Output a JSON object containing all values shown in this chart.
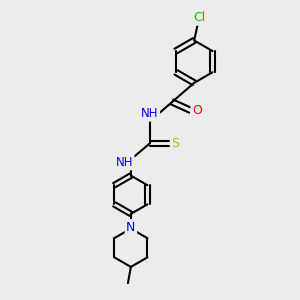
{
  "bg_color": "#ececec",
  "bond_color": "#000000",
  "bond_width": 1.5,
  "atom_colors": {
    "C": "#000000",
    "H": "#6e6e6e",
    "N": "#0000ff",
    "O": "#ff0000",
    "S": "#ccaa00",
    "Cl": "#00cc00"
  },
  "font_size": 8.5,
  "figsize": [
    3.0,
    3.0
  ],
  "dpi": 100
}
